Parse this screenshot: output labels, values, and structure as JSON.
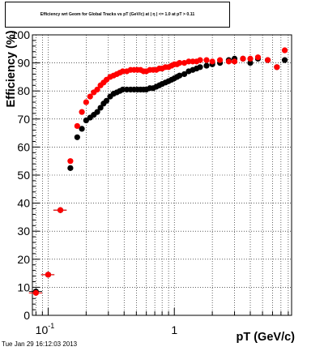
{
  "chart_data": {
    "type": "scatter",
    "title": "Efficiency wrt Geom for Global Tracks vs pT (GeV/c) at | η | <= 1.0 at pT > 0.11",
    "xlabel": "pT (GeV/c)",
    "ylabel": "Efficiency (%)",
    "xscale": "log",
    "xlim": [
      0.075,
      8.5
    ],
    "ylim": [
      0,
      100
    ],
    "grid": true,
    "x_tick_labels": [
      {
        "value": 0.1,
        "base": "10",
        "exp": "-1"
      },
      {
        "value": 1,
        "base": "1",
        "exp": ""
      }
    ],
    "y_ticks": [
      0,
      10,
      20,
      30,
      40,
      50,
      60,
      70,
      80,
      90,
      100
    ],
    "series": [
      {
        "color": "#000000",
        "x": [
          0.08,
          0.1,
          0.125,
          0.15,
          0.17,
          0.185,
          0.2,
          0.215,
          0.23,
          0.245,
          0.26,
          0.275,
          0.29,
          0.31,
          0.33,
          0.35,
          0.37,
          0.39,
          0.42,
          0.45,
          0.48,
          0.51,
          0.54,
          0.57,
          0.6,
          0.64,
          0.68,
          0.72,
          0.76,
          0.8,
          0.85,
          0.9,
          0.95,
          1.0,
          1.05,
          1.1,
          1.2,
          1.3,
          1.4,
          1.5,
          1.6,
          1.8,
          2.0,
          2.3,
          2.7,
          3.0,
          3.5,
          4.0,
          4.6,
          5.5,
          6.5,
          7.5
        ],
        "values": [
          8.5,
          14.5,
          37.5,
          52.5,
          63.5,
          66.5,
          69.5,
          70.5,
          71.5,
          72.5,
          74.0,
          75.5,
          76.5,
          78.0,
          79.0,
          79.5,
          80.0,
          80.5,
          80.5,
          80.5,
          80.5,
          80.5,
          80.5,
          80.5,
          80.5,
          81.0,
          81.0,
          81.5,
          82.0,
          82.5,
          83.0,
          83.5,
          84.0,
          84.5,
          85.0,
          85.5,
          86.0,
          87.0,
          87.5,
          88.0,
          88.5,
          89.0,
          89.5,
          90.0,
          91.0,
          91.5,
          91.5,
          90.0,
          91.5,
          91.0,
          88.5,
          91.0
        ]
      },
      {
        "color": "#ff0000",
        "x": [
          0.08,
          0.1,
          0.125,
          0.15,
          0.17,
          0.185,
          0.2,
          0.215,
          0.23,
          0.245,
          0.26,
          0.275,
          0.29,
          0.31,
          0.33,
          0.35,
          0.37,
          0.39,
          0.42,
          0.45,
          0.48,
          0.51,
          0.54,
          0.57,
          0.6,
          0.64,
          0.68,
          0.72,
          0.76,
          0.8,
          0.85,
          0.9,
          0.95,
          1.0,
          1.05,
          1.1,
          1.2,
          1.3,
          1.4,
          1.5,
          1.6,
          1.8,
          2.0,
          2.3,
          2.7,
          3.0,
          3.5,
          4.0,
          4.6,
          5.5,
          6.5,
          7.5
        ],
        "values": [
          8.0,
          14.5,
          37.5,
          55.0,
          67.5,
          72.5,
          76.0,
          78.0,
          79.5,
          80.5,
          82.0,
          83.0,
          84.0,
          85.0,
          85.5,
          86.0,
          86.5,
          87.0,
          87.0,
          87.5,
          87.5,
          87.5,
          87.5,
          87.0,
          87.0,
          87.5,
          87.5,
          87.5,
          88.0,
          88.0,
          88.5,
          88.5,
          89.0,
          89.5,
          89.5,
          90.0,
          90.0,
          90.5,
          90.5,
          90.5,
          91.0,
          91.0,
          90.5,
          91.0,
          90.5,
          90.5,
          91.5,
          91.5,
          92.0,
          91.0,
          88.5,
          94.5
        ]
      }
    ]
  },
  "timestamp": "Tue Jan 29 16:12:03 2013"
}
